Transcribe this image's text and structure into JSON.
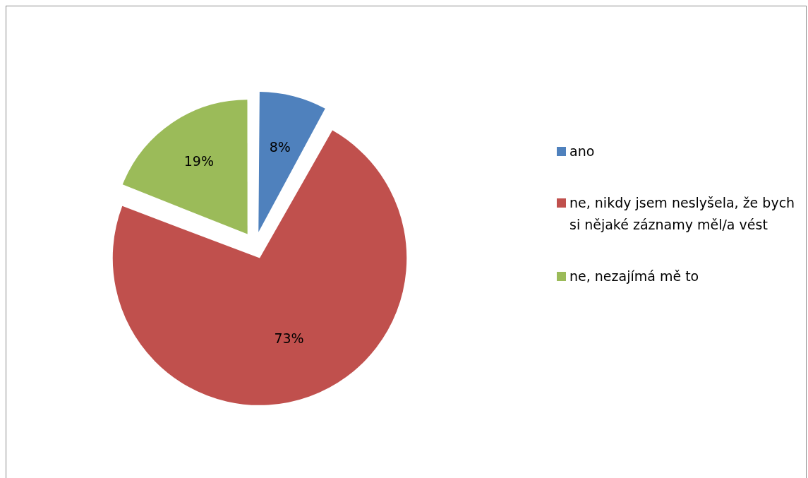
{
  "chart_data": {
    "type": "pie",
    "categories": [
      "ano",
      "ne, nikdy jsem neslyšela, že bych si nějaké záznamy měl/a vést",
      "ne, nezajímá mě to"
    ],
    "values": [
      8,
      73,
      19
    ],
    "colors": [
      "#4f81bd",
      "#c0504d",
      "#9bbb59"
    ],
    "value_labels": [
      "8%",
      "73%",
      "19%"
    ],
    "legend": "right"
  }
}
